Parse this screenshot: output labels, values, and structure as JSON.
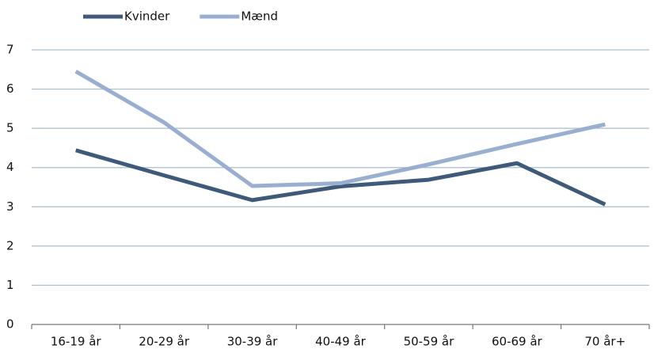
{
  "chart_data": {
    "type": "line",
    "categories": [
      "16-19 år",
      "20-29 år",
      "30-39 år",
      "40-49 år",
      "50-59 år",
      "60-69 år",
      "70 år+"
    ],
    "series": [
      {
        "name": "Kvinder",
        "color": "#3e5a78",
        "values": [
          4.44,
          3.8,
          3.17,
          3.52,
          3.69,
          4.11,
          3.06
        ]
      },
      {
        "name": "Mænd",
        "color": "#9aafd0",
        "values": [
          6.45,
          5.15,
          3.53,
          3.6,
          4.08,
          4.6,
          5.1
        ]
      }
    ],
    "ylim": [
      0,
      7
    ],
    "yticks": [
      0,
      1,
      2,
      3,
      4,
      5,
      6,
      7
    ],
    "grid": true,
    "legend": "top"
  }
}
